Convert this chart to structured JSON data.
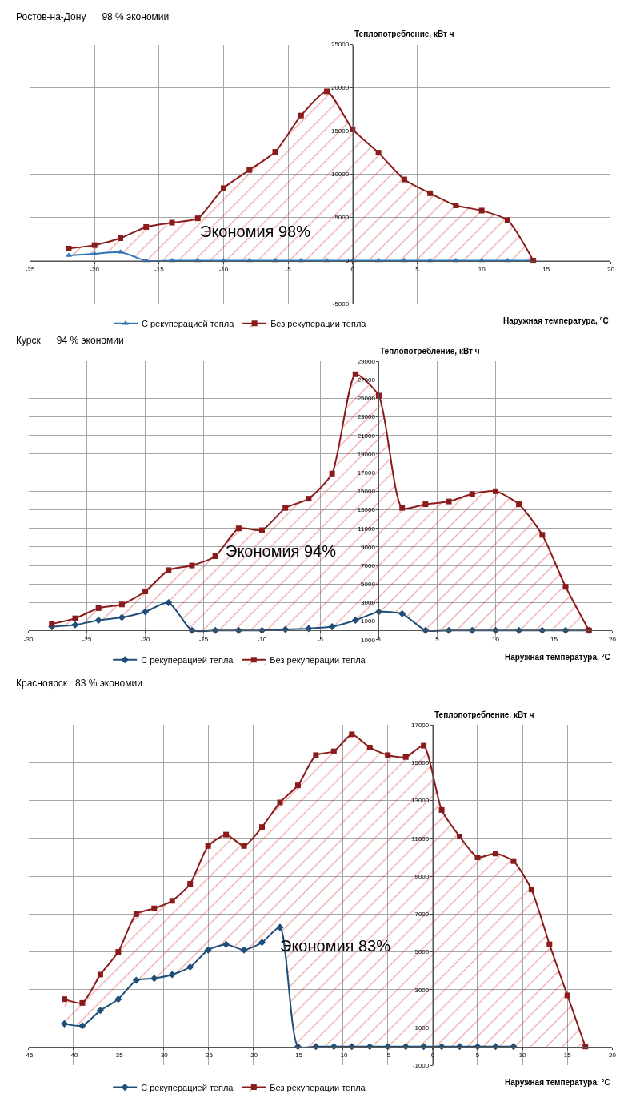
{
  "chart_data": [
    {
      "type": "line",
      "title": "Ростов-на-Дону      98 % экономии",
      "ylabel": "Теплопотребление, кВт ч",
      "xlabel": "Наружная температура, °C",
      "annotations": [
        "Экономия 98%"
      ],
      "xlim": [
        -25,
        20
      ],
      "xticks": [
        -25,
        -20,
        -15,
        -10,
        -5,
        0,
        5,
        10,
        15,
        20
      ],
      "ylim": [
        -5000,
        25000
      ],
      "yticks": [
        -5000,
        0,
        5000,
        10000,
        15000,
        20000,
        25000
      ],
      "grid": true,
      "legend": "bottom",
      "series": [
        {
          "name": "С рекуперацией тепла",
          "color": "#2e75b6",
          "marker": "triangle",
          "x": [
            -22,
            -20,
            -18,
            -16,
            -14,
            -12,
            -10,
            -8,
            -6,
            -4,
            -2,
            0,
            2,
            4,
            6,
            8,
            10,
            12,
            14
          ],
          "values": [
            600,
            800,
            1000,
            0,
            0,
            0,
            0,
            0,
            0,
            0,
            0,
            0,
            0,
            0,
            0,
            0,
            0,
            0,
            0
          ]
        },
        {
          "name": "Без рекуперации тепла",
          "color": "#8b1a1a",
          "marker": "square",
          "type": "area",
          "x": [
            -22,
            -20,
            -18,
            -16,
            -14,
            -12,
            -10,
            -8,
            -6,
            -4,
            -2,
            0,
            2,
            4,
            6,
            8,
            10,
            12,
            14
          ],
          "values": [
            1400,
            1800,
            2600,
            3900,
            4400,
            4900,
            8400,
            10500,
            12600,
            16800,
            19600,
            15200,
            12500,
            9400,
            7800,
            6400,
            5800,
            4700,
            0
          ]
        }
      ]
    },
    {
      "type": "line",
      "title": "Курск      94 % экономии",
      "ylabel": "Теплопотребление, кВт ч",
      "xlabel": "Наружная температура, °C",
      "annotations": [
        "Экономия 94%"
      ],
      "xlim": [
        -30,
        20
      ],
      "xticks": [
        -30,
        -25,
        -20,
        -15,
        -10,
        -5,
        0,
        5,
        10,
        15,
        20
      ],
      "ylim": [
        -1000,
        29000
      ],
      "yticks": [
        -1000,
        1000,
        3000,
        5000,
        7000,
        9000,
        11000,
        13000,
        15000,
        17000,
        19000,
        21000,
        23000,
        25000,
        27000,
        29000
      ],
      "grid": true,
      "legend": "bottom",
      "series": [
        {
          "name": "С рекуперацией тепла",
          "color": "#1f4e79",
          "marker": "diamond",
          "x": [
            -28,
            -26,
            -24,
            -22,
            -20,
            -18,
            -16,
            -14,
            -12,
            -10,
            -8,
            -6,
            -4,
            -2,
            0,
            2,
            4,
            6,
            8,
            10,
            12,
            14,
            16,
            18
          ],
          "values": [
            400,
            600,
            1100,
            1400,
            2000,
            3000,
            0,
            0,
            0,
            0,
            100,
            200,
            400,
            1100,
            2000,
            1800,
            0,
            0,
            0,
            0,
            0,
            0,
            0,
            0
          ]
        },
        {
          "name": "Без рекуперации тепла",
          "color": "#8b1a1a",
          "marker": "square",
          "type": "area",
          "x": [
            -28,
            -26,
            -24,
            -22,
            -20,
            -18,
            -16,
            -14,
            -12,
            -10,
            -8,
            -6,
            -4,
            -2,
            0,
            2,
            4,
            6,
            8,
            10,
            12,
            14,
            16,
            18
          ],
          "values": [
            700,
            1300,
            2400,
            2800,
            4200,
            6500,
            7000,
            8000,
            11000,
            10800,
            13200,
            14200,
            16900,
            27600,
            25300,
            13200,
            13600,
            13900,
            14700,
            15000,
            13600,
            10300,
            4700,
            0
          ]
        }
      ]
    },
    {
      "type": "line",
      "title": "Красноярск   83 % экономии",
      "ylabel": "Теплопотребление, кВт ч",
      "xlabel": "Наружная температура, °C",
      "annotations": [
        "Экономия 83%"
      ],
      "xlim": [
        -45,
        20
      ],
      "xticks": [
        -45,
        -40,
        -35,
        -30,
        -25,
        -20,
        -15,
        -10,
        -5,
        0,
        5,
        10,
        15,
        20
      ],
      "ylim": [
        -1000,
        17000
      ],
      "yticks": [
        -1000,
        1000,
        3000,
        5000,
        7000,
        9000,
        11000,
        13000,
        15000,
        17000
      ],
      "grid": true,
      "legend": "bottom",
      "series": [
        {
          "name": "С рекуперацией тепла",
          "color": "#1f4e79",
          "marker": "diamond",
          "x": [
            -41,
            -39,
            -37,
            -35,
            -33,
            -31,
            -29,
            -27,
            -25,
            -23,
            -21,
            -19,
            -17,
            -15,
            -13,
            -11,
            -9,
            -7,
            -5,
            -3,
            -1,
            1,
            3,
            5,
            7,
            9
          ],
          "values": [
            1200,
            1100,
            1900,
            2500,
            3500,
            3600,
            3800,
            4200,
            5100,
            5400,
            5100,
            5500,
            6300,
            0,
            0,
            0,
            0,
            0,
            0,
            0,
            0,
            0,
            0,
            0,
            0,
            0
          ]
        },
        {
          "name": "Без рекуперации тепла",
          "color": "#8b1a1a",
          "marker": "square",
          "type": "area",
          "x": [
            -41,
            -39,
            -37,
            -35,
            -33,
            -31,
            -29,
            -27,
            -25,
            -23,
            -21,
            -19,
            -17,
            -15,
            -13,
            -11,
            -9,
            -7,
            -5,
            -3,
            -1,
            1,
            3,
            5,
            7,
            9,
            11,
            13,
            15,
            17
          ],
          "values": [
            2500,
            2300,
            3800,
            5000,
            7000,
            7300,
            7700,
            8600,
            10600,
            11200,
            10600,
            11600,
            12900,
            13800,
            15400,
            15600,
            16500,
            15800,
            15400,
            15300,
            15900,
            12500,
            11100,
            10000,
            10200,
            9800,
            8300,
            5400,
            2700,
            0
          ]
        }
      ]
    }
  ]
}
